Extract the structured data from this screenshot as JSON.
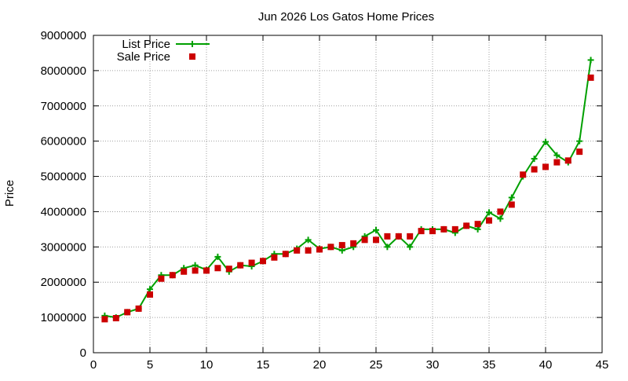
{
  "chart_data": {
    "type": "line",
    "title": "Jun 2026 Los Gatos Home Prices",
    "xlabel": "",
    "ylabel": "Price",
    "xlim": [
      0,
      45
    ],
    "ylim": [
      0,
      9000000
    ],
    "x_ticks": [
      0,
      5,
      10,
      15,
      20,
      25,
      30,
      35,
      40,
      45
    ],
    "y_ticks": [
      0,
      1000000,
      2000000,
      3000000,
      4000000,
      5000000,
      6000000,
      7000000,
      8000000,
      9000000
    ],
    "grid": true,
    "legend_position": "top-left",
    "x": [
      1,
      2,
      3,
      4,
      5,
      6,
      7,
      8,
      9,
      10,
      11,
      12,
      13,
      14,
      15,
      16,
      17,
      18,
      19,
      20,
      21,
      22,
      23,
      24,
      25,
      26,
      27,
      28,
      29,
      30,
      31,
      32,
      33,
      34,
      35,
      36,
      37,
      38,
      39,
      40,
      41,
      42,
      43,
      44
    ],
    "series": [
      {
        "name": "List Price",
        "style": "line-plus",
        "color": "#00a000",
        "values": [
          1050000,
          1000000,
          1150000,
          1250000,
          1800000,
          2200000,
          2200000,
          2400000,
          2480000,
          2350000,
          2720000,
          2300000,
          2480000,
          2450000,
          2600000,
          2800000,
          2800000,
          2950000,
          3200000,
          2950000,
          3000000,
          2900000,
          3000000,
          3300000,
          3480000,
          3000000,
          3300000,
          3000000,
          3500000,
          3500000,
          3500000,
          3400000,
          3600000,
          3500000,
          3980000,
          3800000,
          4400000,
          5000000,
          5500000,
          5980000,
          5600000,
          5400000,
          6000000,
          8300000
        ]
      },
      {
        "name": "Sale Price",
        "style": "square",
        "color": "#cc0000",
        "values": [
          950000,
          980000,
          1150000,
          1250000,
          1650000,
          2100000,
          2200000,
          2300000,
          2330000,
          2330000,
          2400000,
          2380000,
          2480000,
          2550000,
          2600000,
          2700000,
          2800000,
          2900000,
          2900000,
          2930000,
          3000000,
          3050000,
          3100000,
          3200000,
          3200000,
          3300000,
          3300000,
          3300000,
          3450000,
          3450000,
          3500000,
          3500000,
          3600000,
          3650000,
          3750000,
          4000000,
          4200000,
          5050000,
          5200000,
          5270000,
          5400000,
          5450000,
          5700000,
          7800000
        ]
      }
    ]
  }
}
